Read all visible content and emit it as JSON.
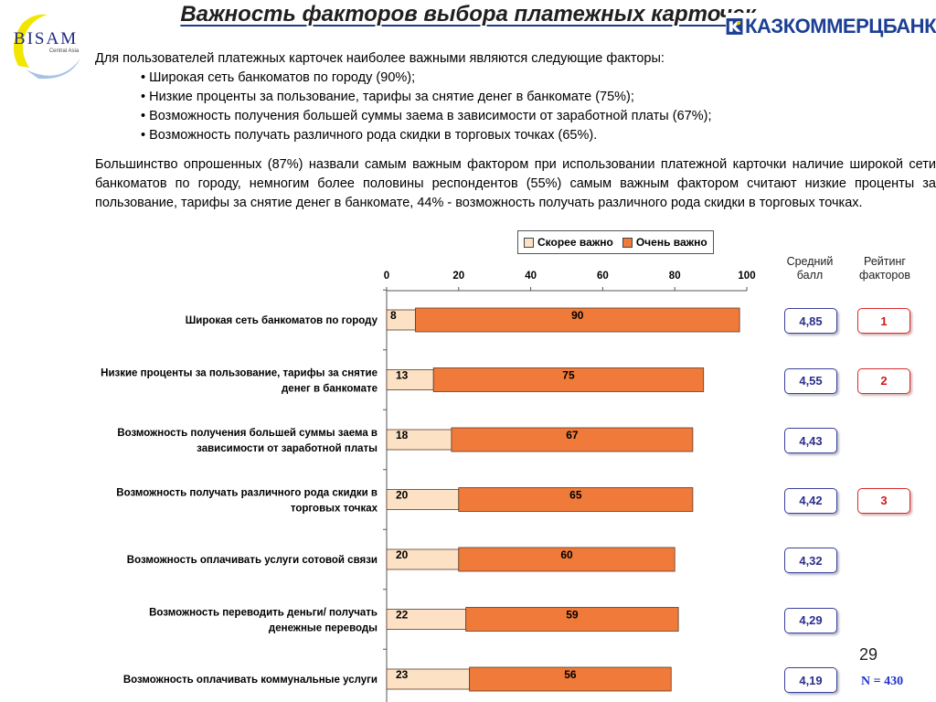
{
  "title": "Важность факторов выбора платежных карточек",
  "logo": {
    "text": "BISAM",
    "subtext": "Central Asia"
  },
  "bank_logo": {
    "text": "КАЗКОММЕРЦБАНК"
  },
  "intro": {
    "lead": "Для пользователей платежных карточек наиболее важными являются следующие факторы:",
    "bullets": [
      "Широкая сеть банкоматов по городу (90%);",
      "Низкие проценты за пользование, тарифы за снятие денег в банкомате (75%);",
      "Возможность получения большей суммы заема в зависимости от заработной платы (67%);",
      "Возможность получать различного рода скидки в торговых точках (65%)."
    ]
  },
  "summary": "Большинство опрошенных (87%) назвали самым важным фактором при использовании платежной карточки наличие широкой сети банкоматов по городу, немногим более половины респондентов (55%) самым важным фактором считают низкие проценты за пользование, тарифы за снятие денег в банкомате, 44% - возможность получать различного рода скидки в торговых точках.",
  "columns": {
    "mean": "Средний балл",
    "rank": "Рейтинг факторов"
  },
  "page_number": "29",
  "sample_size": "N = 430",
  "colors": {
    "somewhat": "#fde1c4",
    "very": "#f07a3a",
    "mean_border": "#3a3f9a",
    "rank_border": "#d82a2a"
  },
  "chart_data": {
    "type": "bar",
    "orientation": "horizontal",
    "stacked": true,
    "xlim": [
      0,
      100
    ],
    "ticks": [
      0,
      20,
      40,
      60,
      80,
      100
    ],
    "legend_position": "top",
    "categories": [
      "Широкая сеть банкоматов по городу",
      "Низкие проценты за пользование, тарифы за снятие денег в банкомате",
      "Возможность получения большей суммы заема в зависимости от заработной платы",
      "Возможность получать различного рода скидки в торговых точках",
      "Возможность оплачивать услуги сотовой связи",
      "Возможность переводить деньги/ получать денежные переводы",
      "Возможность оплачивать коммунальные услуги"
    ],
    "category_lines": [
      [
        "Широкая сеть банкоматов по городу"
      ],
      [
        "Низкие проценты за пользование, тарифы за снятие",
        "денег в банкомате"
      ],
      [
        "Возможность получения большей суммы заема в",
        "зависимости от заработной платы"
      ],
      [
        "Возможность получать различного рода скидки в",
        "торговых точках"
      ],
      [
        "Возможность оплачивать услуги сотовой связи"
      ],
      [
        "Возможность переводить деньги/ получать",
        "денежные переводы"
      ],
      [
        "Возможность оплачивать коммунальные услуги"
      ]
    ],
    "series": [
      {
        "name": "Скорее важно",
        "values": [
          8,
          13,
          18,
          20,
          20,
          22,
          23
        ]
      },
      {
        "name": "Очень важно",
        "values": [
          90,
          75,
          67,
          65,
          60,
          59,
          56
        ]
      }
    ],
    "mean_scores": [
      "4,85",
      "4,55",
      "4,43",
      "4,42",
      "4,32",
      "4,29",
      "4,19"
    ],
    "ranks": [
      "1",
      "2",
      "",
      "3",
      "",
      "",
      ""
    ]
  }
}
